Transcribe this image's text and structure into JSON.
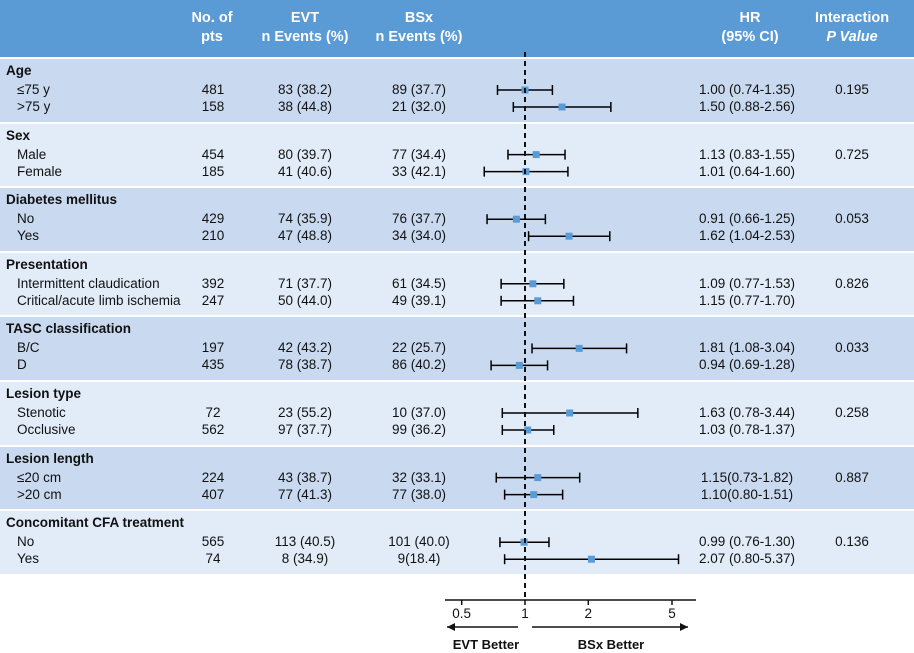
{
  "headers": {
    "n": [
      "No. of",
      "pts"
    ],
    "evt": [
      "EVT",
      "n Events (%)"
    ],
    "bsx": [
      "BSx",
      "n Events (%)"
    ],
    "hr": [
      "HR",
      "(95% CI)"
    ],
    "p": [
      "Interaction",
      "P Value"
    ]
  },
  "colors": {
    "header_bg": "#5b9bd5",
    "band_dark": "#c9daf0",
    "band_light": "#e2ecf8",
    "marker": "#5b9bd5",
    "line": "#000000"
  },
  "chart_data": {
    "type": "forest",
    "x_scale": "log",
    "reference_line": 1,
    "reference_style": "dashed",
    "xlim": [
      0.37,
      6.5
    ],
    "x_ticks": [
      0.5,
      1,
      2,
      5
    ],
    "x_tick_labels": [
      "0.5",
      "1",
      "2",
      "5"
    ],
    "direction_left": "EVT Better",
    "direction_right": "BSx Better",
    "groups": [
      {
        "name": "Age",
        "interaction_p": "0.195",
        "rows": [
          {
            "label": "≤75 y",
            "n": "481",
            "evt": "83 (38.2)",
            "bsx": "89 (37.7)",
            "hr_text": "1.00 (0.74-1.35)",
            "hr": 1.0,
            "lo": 0.74,
            "hi": 1.35
          },
          {
            "label": ">75 y",
            "n": "158",
            "evt": "38 (44.8)",
            "bsx": "21 (32.0)",
            "hr_text": "1.50 (0.88-2.56)",
            "hr": 1.5,
            "lo": 0.88,
            "hi": 2.56
          }
        ]
      },
      {
        "name": "Sex",
        "interaction_p": "0.725",
        "rows": [
          {
            "label": "Male",
            "n": "454",
            "evt": "80 (39.7)",
            "bsx": "77 (34.4)",
            "hr_text": "1.13 (0.83-1.55)",
            "hr": 1.13,
            "lo": 0.83,
            "hi": 1.55
          },
          {
            "label": "Female",
            "n": "185",
            "evt": "41 (40.6)",
            "bsx": "33 (42.1)",
            "hr_text": "1.01 (0.64-1.60)",
            "hr": 1.01,
            "lo": 0.64,
            "hi": 1.6
          }
        ]
      },
      {
        "name": "Diabetes mellitus",
        "interaction_p": "0.053",
        "rows": [
          {
            "label": "No",
            "n": "429",
            "evt": "74 (35.9)",
            "bsx": "76 (37.7)",
            "hr_text": "0.91 (0.66-1.25)",
            "hr": 0.91,
            "lo": 0.66,
            "hi": 1.25
          },
          {
            "label": "Yes",
            "n": "210",
            "evt": "47 (48.8)",
            "bsx": "34 (34.0)",
            "hr_text": "1.62 (1.04-2.53)",
            "hr": 1.62,
            "lo": 1.04,
            "hi": 2.53
          }
        ]
      },
      {
        "name": "Presentation",
        "interaction_p": "0.826",
        "rows": [
          {
            "label": "Intermittent claudication",
            "n": "392",
            "evt": "71 (37.7)",
            "bsx": "61 (34.5)",
            "hr_text": "1.09 (0.77-1.53)",
            "hr": 1.09,
            "lo": 0.77,
            "hi": 1.53
          },
          {
            "label": "Critical/acute limb ischemia",
            "n": "247",
            "evt": "50 (44.0)",
            "bsx": "49 (39.1)",
            "hr_text": "1.15 (0.77-1.70)",
            "hr": 1.15,
            "lo": 0.77,
            "hi": 1.7
          }
        ]
      },
      {
        "name": "TASC classification",
        "interaction_p": "0.033",
        "rows": [
          {
            "label": "B/C",
            "n": "197",
            "evt": "42 (43.2)",
            "bsx": "22 (25.7)",
            "hr_text": "1.81 (1.08-3.04)",
            "hr": 1.81,
            "lo": 1.08,
            "hi": 3.04
          },
          {
            "label": "D",
            "n": "435",
            "evt": "78 (38.7)",
            "bsx": "86 (40.2)",
            "hr_text": "0.94 (0.69-1.28)",
            "hr": 0.94,
            "lo": 0.69,
            "hi": 1.28
          }
        ]
      },
      {
        "name": "Lesion type",
        "interaction_p": "0.258",
        "rows": [
          {
            "label": "Stenotic",
            "n": "72",
            "evt": "23 (55.2)",
            "bsx": "10 (37.0)",
            "hr_text": "1.63 (0.78-3.44)",
            "hr": 1.63,
            "lo": 0.78,
            "hi": 3.44
          },
          {
            "label": "Occlusive",
            "n": "562",
            "evt": "97 (37.7)",
            "bsx": "99 (36.2)",
            "hr_text": "1.03 (0.78-1.37)",
            "hr": 1.03,
            "lo": 0.78,
            "hi": 1.37
          }
        ]
      },
      {
        "name": "Lesion length",
        "interaction_p": "0.887",
        "rows": [
          {
            "label": "≤20 cm",
            "n": "224",
            "evt": "43 (38.7)",
            "bsx": "32 (33.1)",
            "hr_text": "1.15(0.73-1.82)",
            "hr": 1.15,
            "lo": 0.73,
            "hi": 1.82
          },
          {
            "label": ">20 cm",
            "n": "407",
            "evt": "77 (41.3)",
            "bsx": "77 (38.0)",
            "hr_text": "1.10(0.80-1.51)",
            "hr": 1.1,
            "lo": 0.8,
            "hi": 1.51
          }
        ]
      },
      {
        "name": "Concomitant CFA treatment",
        "interaction_p": "0.136",
        "rows": [
          {
            "label": "No",
            "n": "565",
            "evt": "113 (40.5)",
            "bsx": "101 (40.0)",
            "hr_text": "0.99 (0.76-1.30)",
            "hr": 0.99,
            "lo": 0.76,
            "hi": 1.3
          },
          {
            "label": "Yes",
            "n": "74",
            "evt": "8 (34.9)",
            "bsx": "9(18.4)",
            "hr_text": "2.07 (0.80-5.37)",
            "hr": 2.07,
            "lo": 0.8,
            "hi": 5.37
          }
        ]
      }
    ]
  }
}
